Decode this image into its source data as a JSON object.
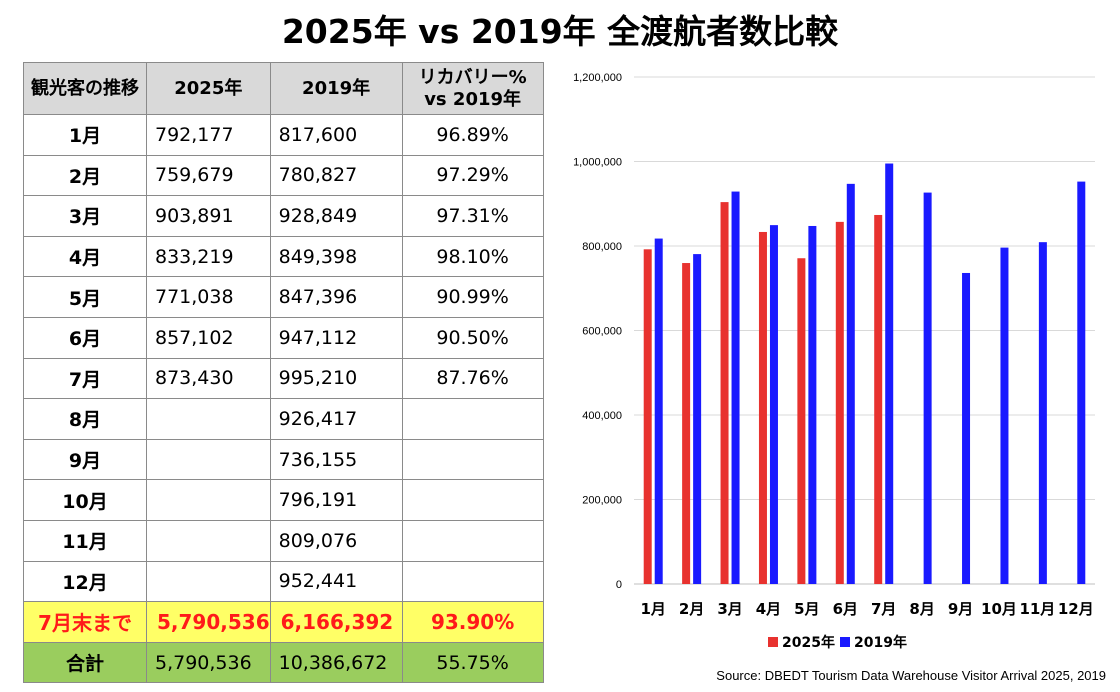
{
  "title": "2025年 vs 2019年 全渡航者数比較",
  "table": {
    "headers": [
      "観光客の推移",
      "2025年",
      "2019年",
      "リカバリー% vs 2019年"
    ],
    "rows": [
      {
        "label": "1月",
        "v2025": "792,177",
        "v2019": "817,600",
        "pct": "96.89%"
      },
      {
        "label": "2月",
        "v2025": "759,679",
        "v2019": "780,827",
        "pct": "97.29%"
      },
      {
        "label": "3月",
        "v2025": "903,891",
        "v2019": "928,849",
        "pct": "97.31%"
      },
      {
        "label": "4月",
        "v2025": "833,219",
        "v2019": "849,398",
        "pct": "98.10%"
      },
      {
        "label": "5月",
        "v2025": "771,038",
        "v2019": "847,396",
        "pct": "90.99%"
      },
      {
        "label": "6月",
        "v2025": "857,102",
        "v2019": "947,112",
        "pct": "90.50%"
      },
      {
        "label": "7月",
        "v2025": "873,430",
        "v2019": "995,210",
        "pct": "87.76%"
      },
      {
        "label": "8月",
        "v2025": "",
        "v2019": "926,417",
        "pct": ""
      },
      {
        "label": "9月",
        "v2025": "",
        "v2019": "736,155",
        "pct": ""
      },
      {
        "label": "10月",
        "v2025": "",
        "v2019": "796,191",
        "pct": ""
      },
      {
        "label": "11月",
        "v2025": "",
        "v2019": "809,076",
        "pct": ""
      },
      {
        "label": "12月",
        "v2025": "",
        "v2019": "952,441",
        "pct": ""
      }
    ],
    "ytd": {
      "label": "7月末まで",
      "v2025": "5,790,536",
      "v2019": "6,166,392",
      "pct": "93.90%"
    },
    "total": {
      "label": "合計",
      "v2025": "5,790,536",
      "v2019": "10,386,672",
      "pct": "55.75%"
    }
  },
  "chart_data": {
    "type": "bar",
    "categories": [
      "1月",
      "2月",
      "3月",
      "4月",
      "5月",
      "6月",
      "7月",
      "8月",
      "9月",
      "10月",
      "11月",
      "12月"
    ],
    "series": [
      {
        "name": "2025年",
        "color": "#e8322f",
        "values": [
          792177,
          759679,
          903891,
          833219,
          771038,
          857102,
          873430,
          null,
          null,
          null,
          null,
          null
        ]
      },
      {
        "name": "2019年",
        "color": "#1a1aff",
        "values": [
          817600,
          780827,
          928849,
          849398,
          847396,
          947112,
          995210,
          926417,
          736155,
          796191,
          809076,
          952441
        ]
      }
    ],
    "ylim": [
      0,
      1200000
    ],
    "yticks": [
      "0",
      "200,000",
      "400,000",
      "600,000",
      "800,000",
      "1,000,000",
      "1,200,000"
    ],
    "grid": true,
    "legend_position": "bottom"
  },
  "source": "Source: DBEDT Tourism Data Warehouse Visitor Arrival 2025, 2019"
}
